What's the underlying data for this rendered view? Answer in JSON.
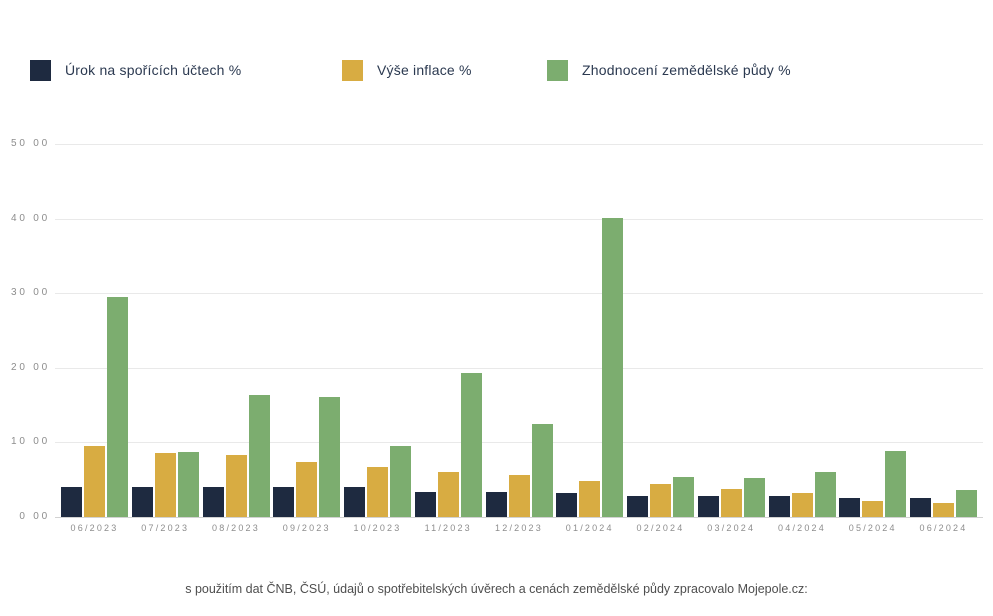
{
  "legend": {
    "items": [
      {
        "label": "Úrok na spořících účtech %",
        "color": "#1e2a40"
      },
      {
        "label": "Výše inflace %",
        "color": "#d8ac42"
      },
      {
        "label": "Zhodnocení zemědělské půdy %",
        "color": "#7cad6f"
      }
    ]
  },
  "chart_data": {
    "type": "bar",
    "title": "",
    "xlabel": "",
    "ylabel": "",
    "ylim": [
      0,
      50
    ],
    "grid": "horizontal",
    "legend_position": "top",
    "y_tick_labels": [
      "50 00",
      "40 00",
      "30 00",
      "20 00",
      "10 00",
      "0 00"
    ],
    "categories": [
      "06/2023",
      "07/2023",
      "08/2023",
      "09/2023",
      "10/2023",
      "11/2023",
      "12/2023",
      "01/2024",
      "02/2024",
      "03/2024",
      "04/2024",
      "05/2024",
      "06/2024"
    ],
    "series": [
      {
        "name": "Úrok na spořících účtech %",
        "color": "#1e2a40",
        "values": [
          4.0,
          4.0,
          4.0,
          4.0,
          4.0,
          3.4,
          3.4,
          3.2,
          2.8,
          2.8,
          2.8,
          2.6,
          2.5
        ]
      },
      {
        "name": "Výše inflace %",
        "color": "#d8ac42",
        "values": [
          9.5,
          8.6,
          8.3,
          7.4,
          6.7,
          6.1,
          5.6,
          4.8,
          4.4,
          3.8,
          3.2,
          2.2,
          1.9
        ]
      },
      {
        "name": "Zhodnocení zemědělské půdy %",
        "color": "#7cad6f",
        "values": [
          29.5,
          8.7,
          16.3,
          16.1,
          9.5,
          19.3,
          12.5,
          40.1,
          5.4,
          5.2,
          6.0,
          8.8,
          3.6
        ]
      }
    ]
  },
  "footer": {
    "text": "s použitím dat ČNB, ČSÚ, údajů o spotřebitelských úvěrech a cenách zemědělské půdy zpracovalo Mojepole.cz:"
  }
}
